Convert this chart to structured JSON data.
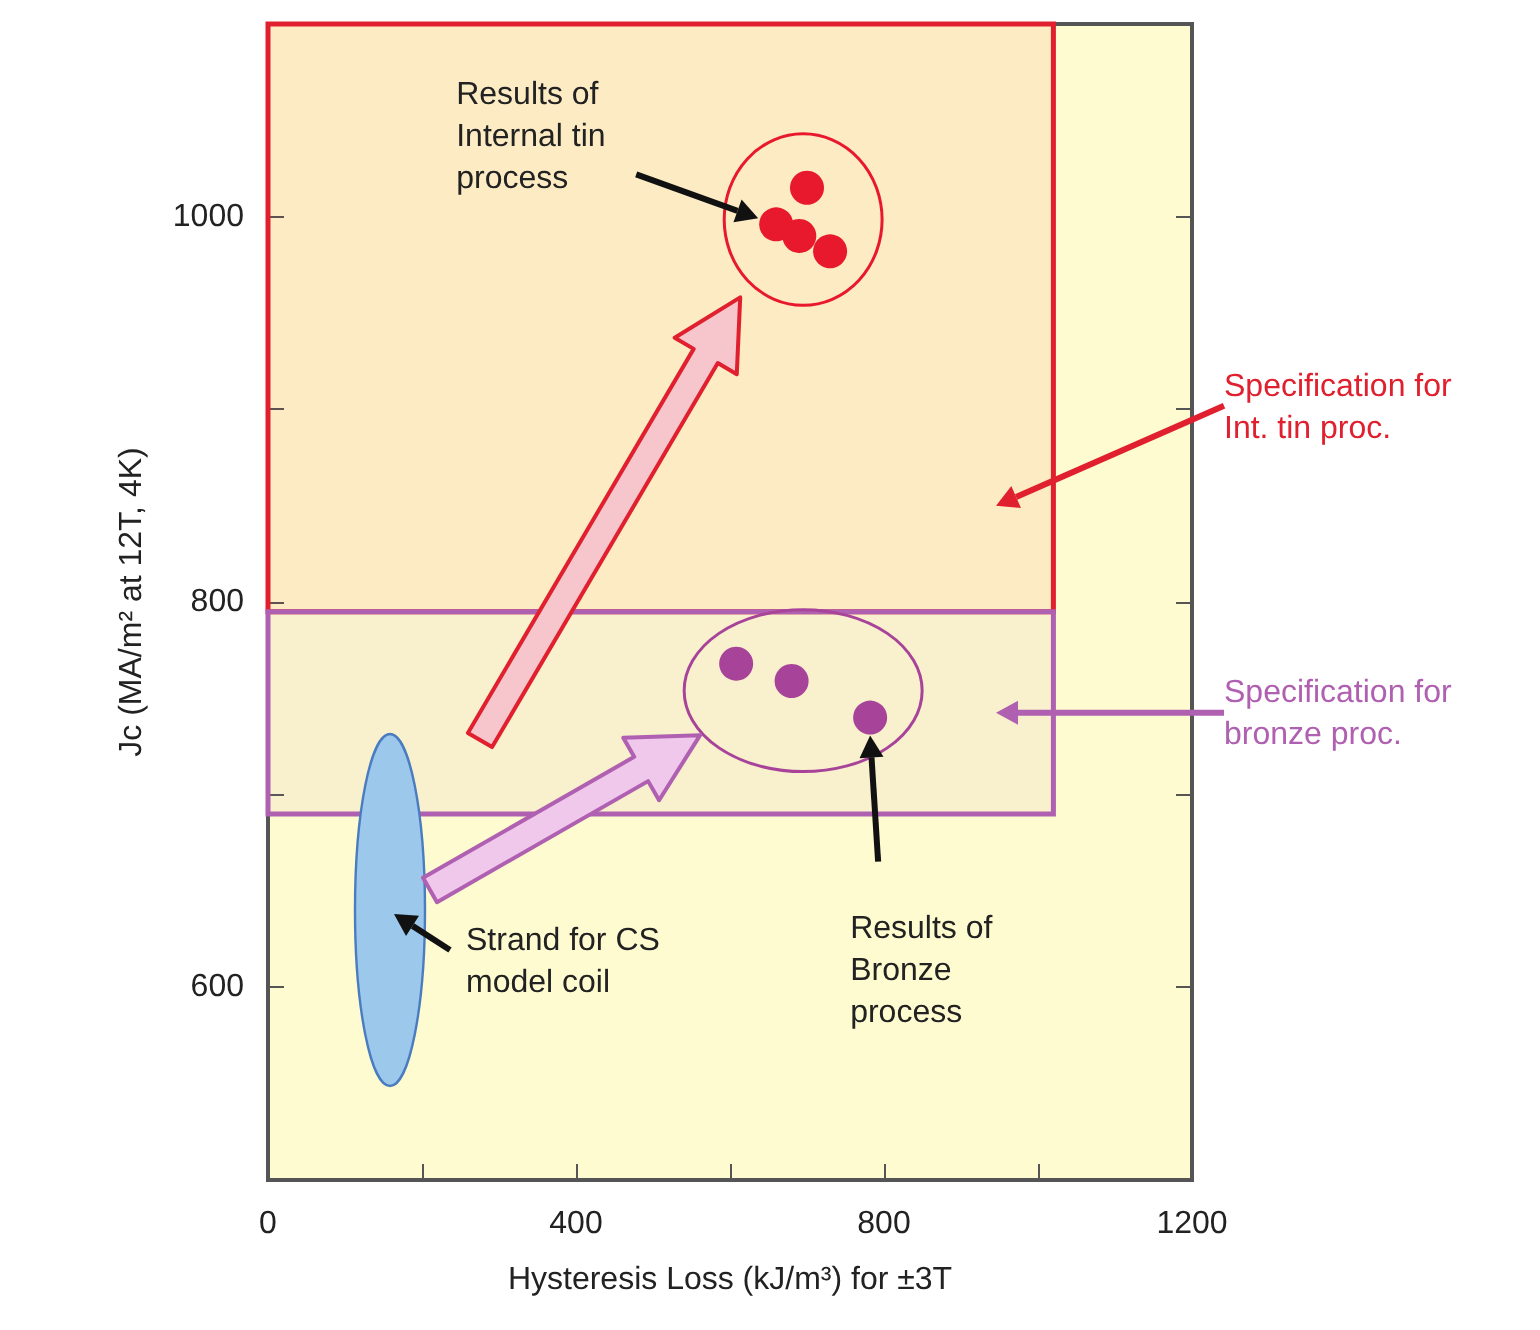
{
  "chart_data": {
    "type": "scatter",
    "xlabel": "Hysteresis Loss (kJ/m³) for ±3T",
    "ylabel": "Jc (MA/m² at 12T, 4K)",
    "xlim": [
      0,
      1200
    ],
    "xticks": [
      0,
      {
        "value": 200,
        "label": null
      },
      400,
      {
        "value": 600,
        "label": null
      },
      800,
      {
        "value": 1000,
        "label": null
      },
      1200
    ],
    "ylim": [
      500,
      1100
    ],
    "yticks": [
      600,
      {
        "value": 700,
        "label": null
      },
      800,
      {
        "value": 900,
        "label": null
      },
      1000
    ],
    "grid": false,
    "marker": "circle",
    "series": [
      {
        "color": "#e8192c",
        "x": [
          660,
          700,
          690,
          730
        ],
        "values": [
          996,
          1015,
          990,
          982
        ]
      },
      {
        "color": "#a8439a",
        "x": [
          608,
          680,
          782
        ],
        "values": [
          768,
          759,
          740
        ]
      }
    ],
    "bands": [
      {
        "axis": "y",
        "from": 795,
        "to": 1100,
        "color": "#e0202e",
        "label": "Specification for Int. tin proc."
      },
      {
        "axis": "y",
        "from": 690,
        "to": 795,
        "color": "#b060b0",
        "label": "Specification for bronze proc."
      }
    ],
    "annotations": [
      "Results of Internal tin process",
      "Results of Bronze process",
      "Strand for CS model coil"
    ]
  }
}
